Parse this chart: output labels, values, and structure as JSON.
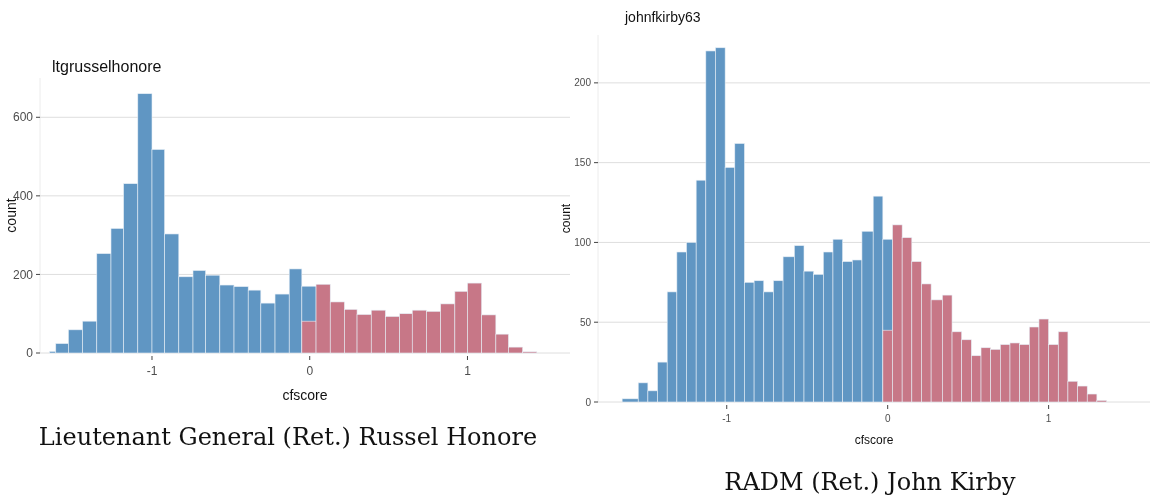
{
  "chart_data": [
    {
      "type": "histogram",
      "title": "ltgrusselhonore",
      "xlabel": "cfscore",
      "ylabel": "count",
      "xlim": [
        -1.71,
        1.65
      ],
      "xticks": [
        -1,
        0,
        1
      ],
      "ylim": [
        0,
        700
      ],
      "yticks": [
        0,
        200,
        400,
        600
      ],
      "grid": "y",
      "annotations": [
        "Lieutenant General (Ret.) Russel Honore"
      ],
      "bins": [
        -1.65,
        -1.61,
        -1.53,
        -1.44,
        -1.35,
        -1.26,
        -1.18,
        -1.09,
        -1.0,
        -0.92,
        -0.83,
        -0.74,
        -0.66,
        -0.57,
        -0.48,
        -0.39,
        -0.31,
        -0.22,
        -0.13,
        -0.05,
        0.04,
        0.13,
        0.22,
        0.3,
        0.39,
        0.48,
        0.57,
        0.65,
        0.74,
        0.83,
        0.92,
        1.0,
        1.09,
        1.18,
        1.26,
        1.35,
        1.44
      ],
      "series": [
        {
          "color": "#6096c3",
          "values": [
            4,
            24,
            59,
            81,
            253,
            317,
            431,
            660,
            518,
            303,
            194,
            210,
            198,
            173,
            169,
            160,
            127,
            150,
            214,
            170,
            null,
            null,
            null,
            null,
            null,
            null,
            null,
            null,
            null,
            null,
            null,
            null,
            null,
            null,
            null,
            null
          ]
        },
        {
          "color": "#c77787",
          "values": [
            null,
            null,
            null,
            null,
            null,
            null,
            null,
            null,
            null,
            null,
            null,
            null,
            null,
            null,
            null,
            null,
            null,
            null,
            null,
            81,
            175,
            130,
            111,
            98,
            109,
            93,
            100,
            109,
            106,
            125,
            157,
            178,
            97,
            48,
            15,
            3
          ]
        }
      ]
    },
    {
      "type": "histogram",
      "title": "johnfkirby63",
      "xlabel": "cfscore",
      "ylabel": "count",
      "xlim": [
        -1.8,
        1.63
      ],
      "xticks": [
        -1,
        0,
        1
      ],
      "ylim": [
        0,
        230
      ],
      "yticks": [
        0,
        50,
        100,
        150,
        200
      ],
      "grid": "y",
      "annotations": [
        "RADM (Ret.) John Kirby"
      ],
      "bins": [
        -1.65,
        -1.55,
        -1.49,
        -1.43,
        -1.37,
        -1.31,
        -1.25,
        -1.19,
        -1.13,
        -1.07,
        -1.01,
        -0.95,
        -0.89,
        -0.83,
        -0.77,
        -0.71,
        -0.65,
        -0.58,
        -0.52,
        -0.46,
        -0.4,
        -0.34,
        -0.28,
        -0.22,
        -0.16,
        -0.09,
        -0.03,
        0.03,
        0.09,
        0.15,
        0.21,
        0.27,
        0.34,
        0.4,
        0.46,
        0.52,
        0.58,
        0.64,
        0.7,
        0.76,
        0.82,
        0.88,
        0.94,
        1.0,
        1.06,
        1.12,
        1.18,
        1.24,
        1.3,
        1.36
      ],
      "series": [
        {
          "color": "#6096c3",
          "values": [
            2,
            12,
            7,
            25,
            69,
            94,
            100,
            139,
            220,
            222,
            147,
            162,
            75,
            76,
            69,
            76,
            91,
            98,
            82,
            80,
            94,
            102,
            88,
            89,
            107,
            129,
            102,
            null,
            null,
            null,
            null,
            null,
            null,
            null,
            null,
            null,
            null,
            null,
            null,
            null,
            null,
            null,
            null,
            null,
            null,
            null,
            null,
            null,
            null
          ]
        },
        {
          "color": "#c77787",
          "values": [
            null,
            null,
            null,
            null,
            null,
            null,
            null,
            null,
            null,
            null,
            null,
            null,
            null,
            null,
            null,
            null,
            null,
            null,
            null,
            null,
            null,
            null,
            null,
            null,
            null,
            null,
            45,
            111,
            103,
            88,
            74,
            64,
            67,
            44,
            39,
            29,
            34,
            33,
            36,
            37,
            36,
            47,
            52,
            36,
            44,
            13,
            10,
            5,
            1
          ]
        }
      ]
    }
  ]
}
